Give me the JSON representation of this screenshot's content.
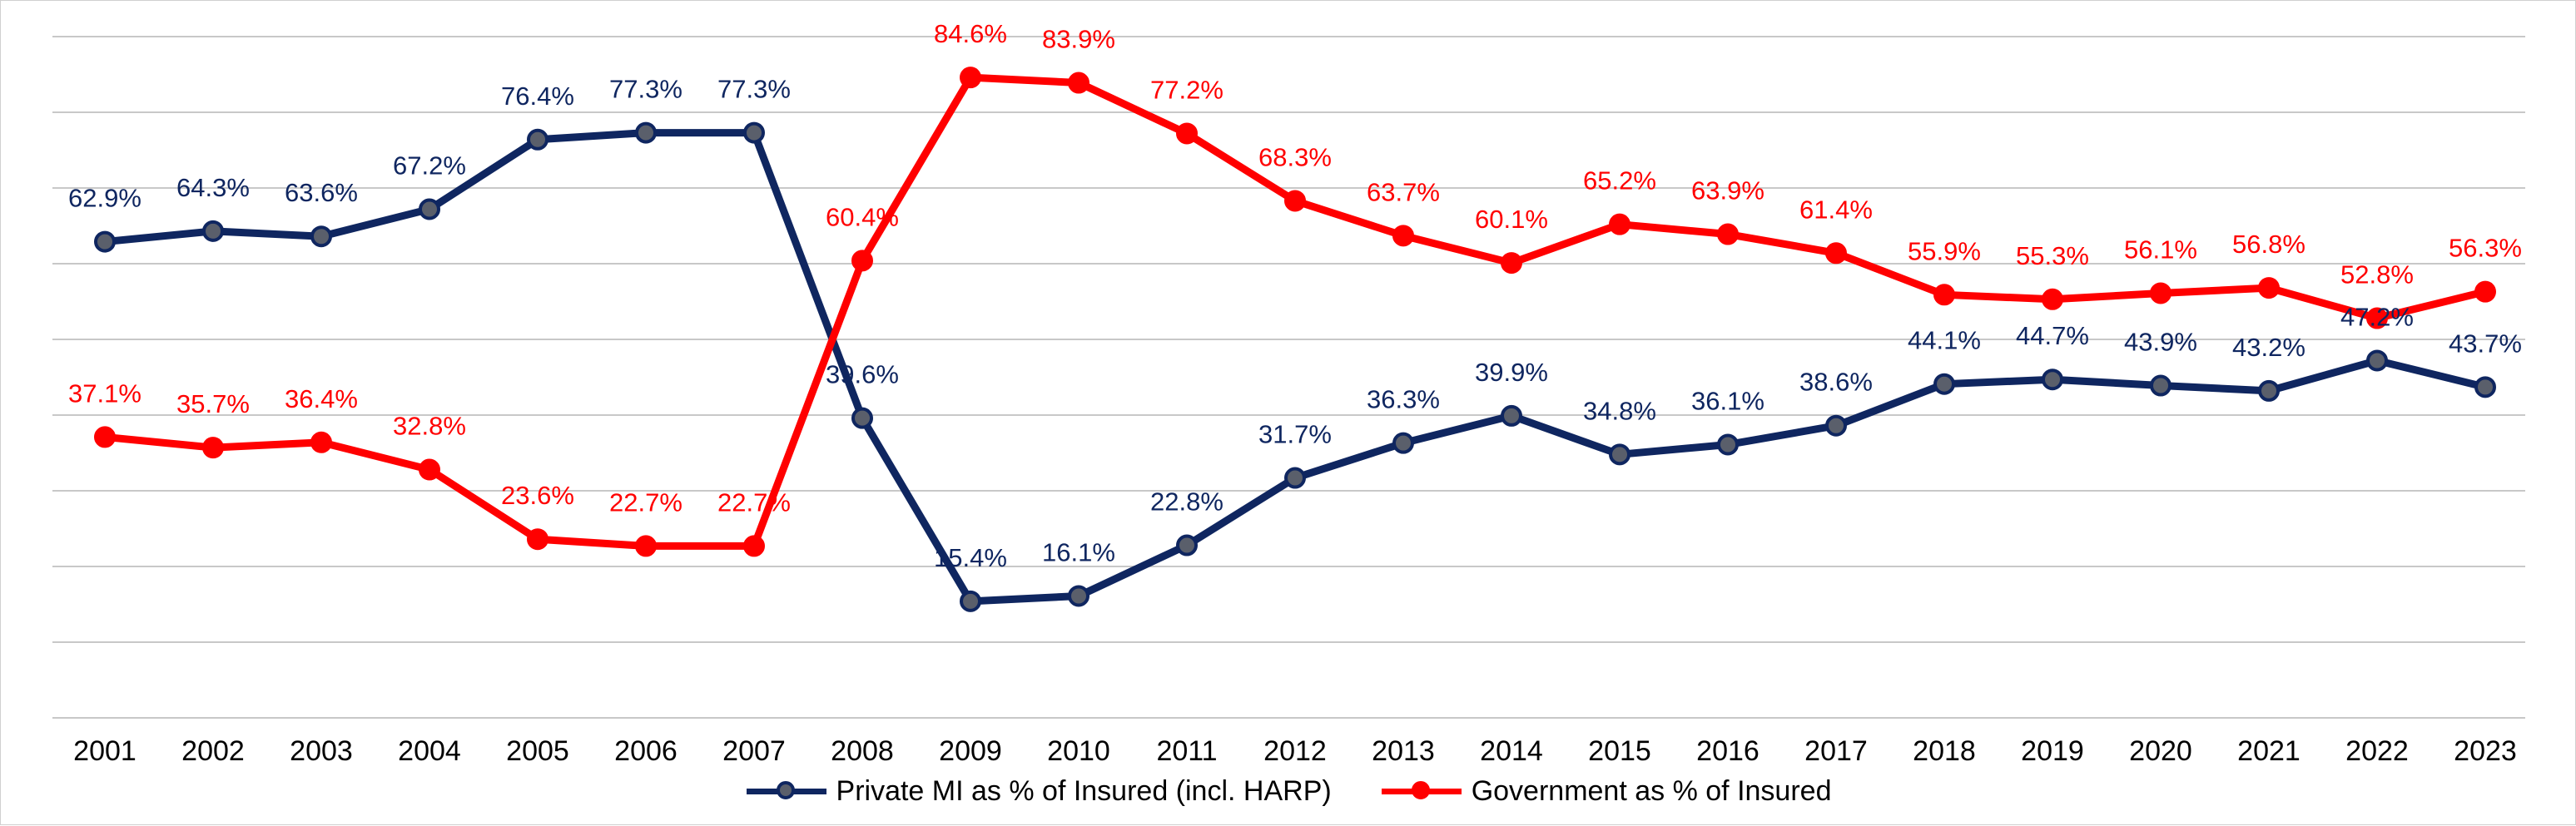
{
  "chart_data": {
    "type": "line",
    "title": "",
    "xlabel": "",
    "ylabel": "",
    "ylim": [
      0,
      90
    ],
    "grid": true,
    "legend_position": "bottom",
    "categories": [
      "2001",
      "2002",
      "2003",
      "2004",
      "2005",
      "2006",
      "2007",
      "2008",
      "2009",
      "2010",
      "2011",
      "2012",
      "2013",
      "2014",
      "2015",
      "2016",
      "2017",
      "2018",
      "2019",
      "2020",
      "2021",
      "2022",
      "2023"
    ],
    "series": [
      {
        "name": "Private MI as % of Insured (incl. HARP)",
        "color": "#0f2660",
        "marker_fill": "#5a5f6b",
        "values": [
          62.9,
          64.3,
          63.6,
          67.2,
          76.4,
          77.3,
          77.3,
          39.6,
          15.4,
          16.1,
          22.8,
          31.7,
          36.3,
          39.9,
          34.8,
          36.1,
          38.6,
          44.1,
          44.7,
          43.9,
          43.2,
          47.2,
          43.7
        ],
        "labels": [
          "62.9%",
          "64.3%",
          "63.6%",
          "67.2%",
          "76.4%",
          "77.3%",
          "77.3%",
          "39.6%",
          "15.4%",
          "16.1%",
          "22.8%",
          "31.7%",
          "36.3%",
          "39.9%",
          "34.8%",
          "36.1%",
          "38.6%",
          "44.1%",
          "44.7%",
          "43.9%",
          "43.2%",
          "47.2%",
          "43.7%"
        ]
      },
      {
        "name": "Government as % of Insured",
        "color": "#ff0000",
        "marker_fill": "#ff0000",
        "values": [
          37.1,
          35.7,
          36.4,
          32.8,
          23.6,
          22.7,
          22.7,
          60.4,
          84.6,
          83.9,
          77.2,
          68.3,
          63.7,
          60.1,
          65.2,
          63.9,
          61.4,
          55.9,
          55.3,
          56.1,
          56.8,
          52.8,
          56.3
        ],
        "labels": [
          "37.1%",
          "35.7%",
          "36.4%",
          "32.8%",
          "23.6%",
          "22.7%",
          "22.7%",
          "60.4%",
          "84.6%",
          "83.9%",
          "77.2%",
          "68.3%",
          "63.7%",
          "60.1%",
          "65.2%",
          "63.9%",
          "61.4%",
          "55.9%",
          "55.3%",
          "56.1%",
          "56.8%",
          "52.8%",
          "56.3%"
        ]
      }
    ]
  }
}
